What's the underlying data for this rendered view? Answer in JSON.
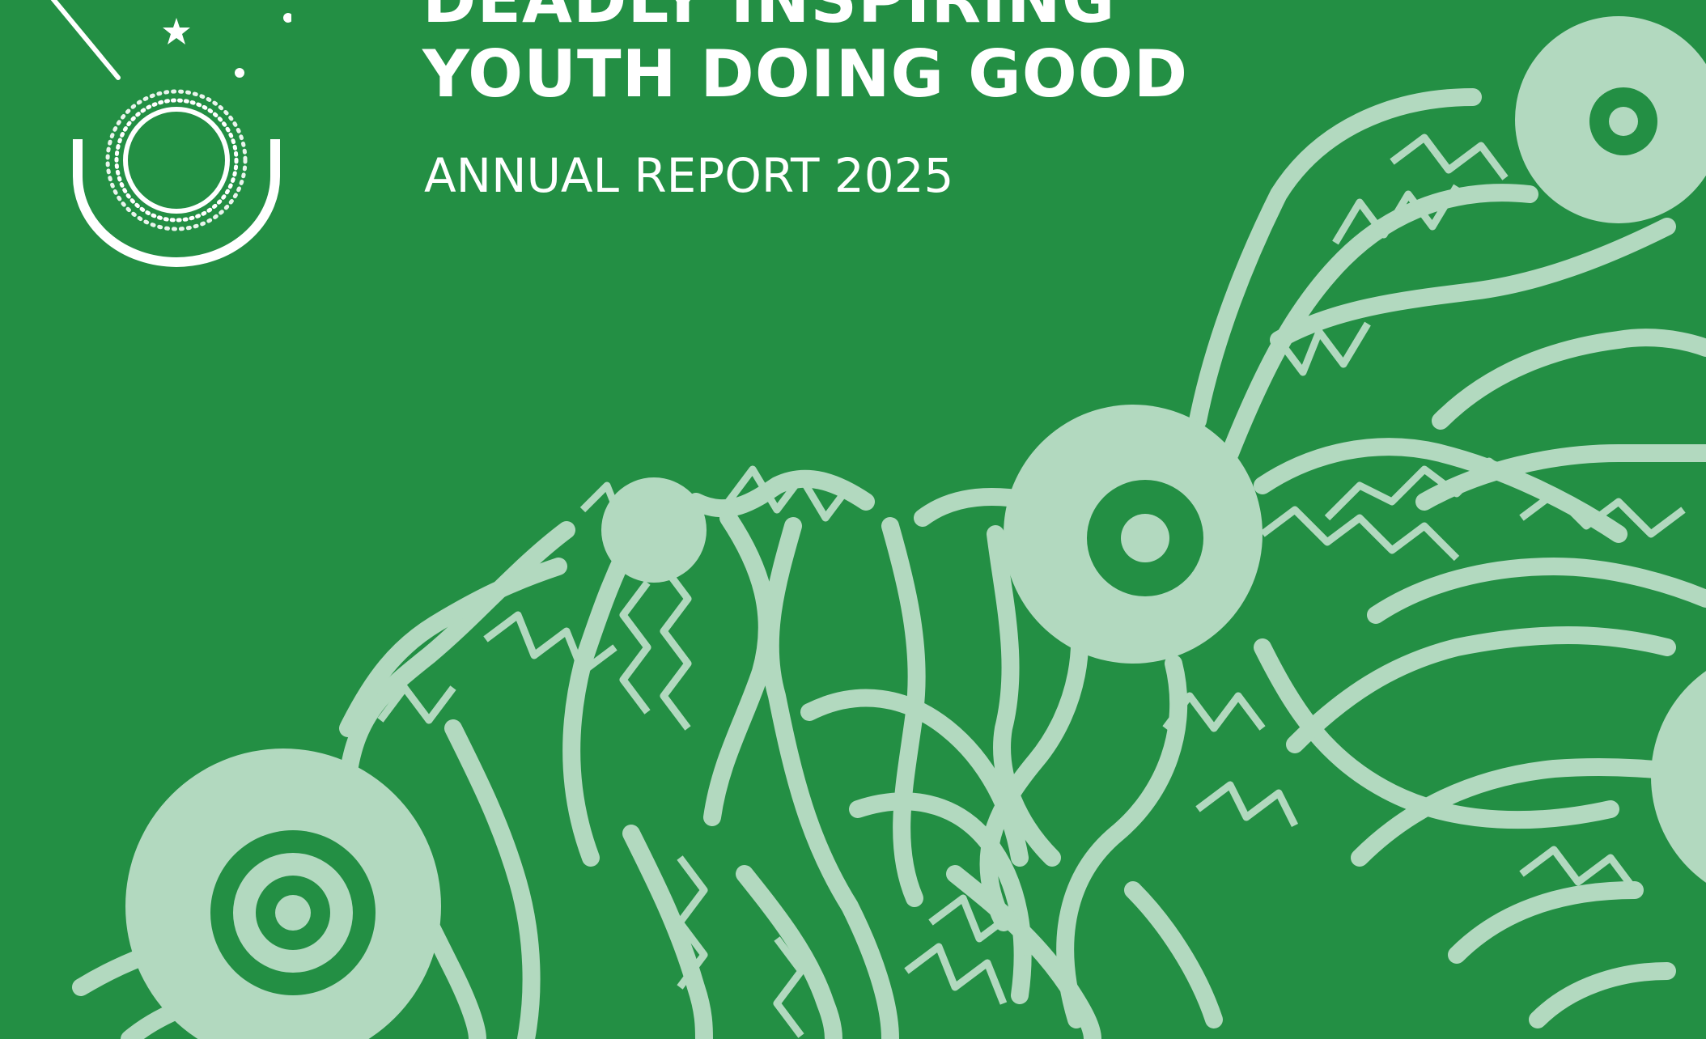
{
  "cover": {
    "title_line_1": "DEADLY INSPIRING",
    "title_line_2": "YOUTH DOING GOOD",
    "subtitle": "ANNUAL REPORT 2025"
  },
  "colors": {
    "background": "#238f44",
    "artwork": "#b2d9bf",
    "text": "#ffffff"
  },
  "icons": {
    "logo": "organisation-emblem-icon",
    "artwork": "aboriginal-dot-circle-artwork"
  }
}
